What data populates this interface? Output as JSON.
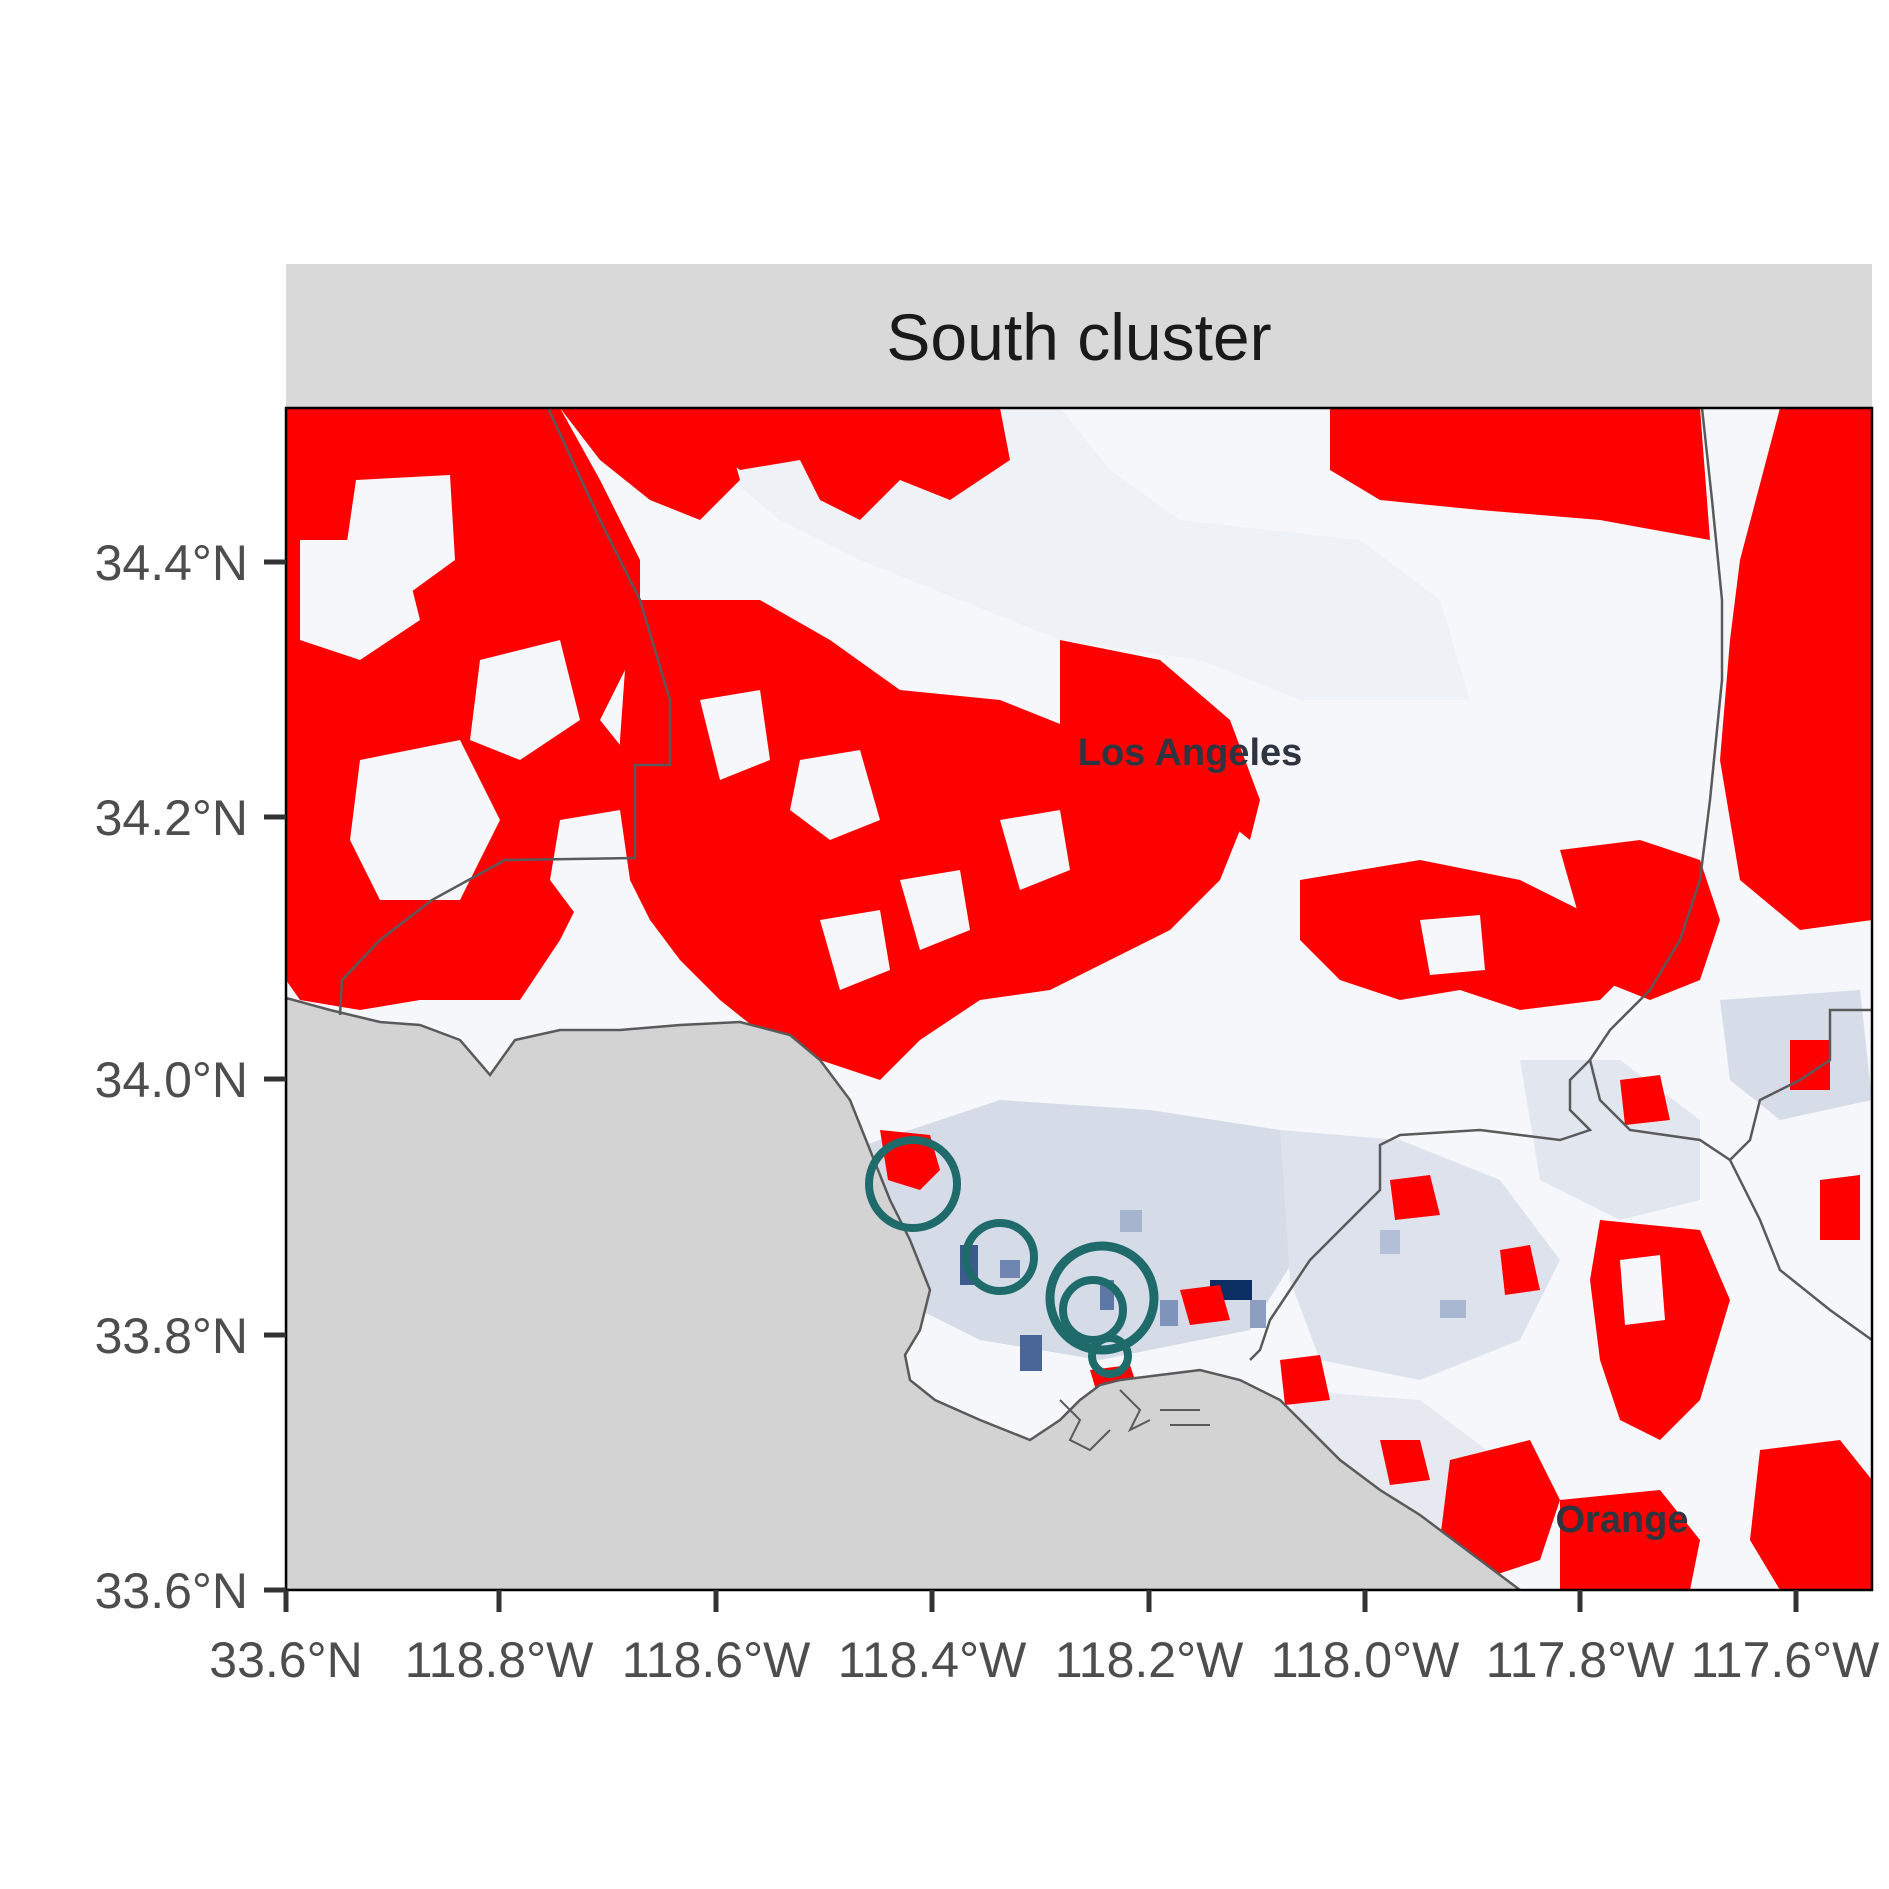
{
  "panel": {
    "strip_title": "South cluster",
    "background_color": "#d3d3d3",
    "strip_color": "#d9d9d9"
  },
  "axes": {
    "y_ticks": [
      "34.4°N",
      "34.2°N",
      "34.0°N",
      "33.8°N",
      "33.6°N"
    ],
    "x_ticks": [
      "33.6°N",
      "118.8°W",
      "118.6°W",
      "118.4°W",
      "118.2°W",
      "118.0°W",
      "117.8°W",
      "117.6°W"
    ]
  },
  "map": {
    "labels": [
      {
        "name": "Los Angeles"
      },
      {
        "name": "Orange"
      }
    ],
    "fill_colors": {
      "hotspot": "#ff0000",
      "low": "#f4f6f9",
      "mid": "#c9d1e0",
      "high": "#3d5a8c",
      "max": "#0b2e63",
      "ocean": "#d3d3d3",
      "circle": "#1f6b6b",
      "county_border": "#5a5a5a"
    }
  },
  "circles": [
    {
      "name": "circle-1"
    },
    {
      "name": "circle-2"
    },
    {
      "name": "circle-3"
    },
    {
      "name": "circle-4"
    },
    {
      "name": "circle-5"
    }
  ]
}
